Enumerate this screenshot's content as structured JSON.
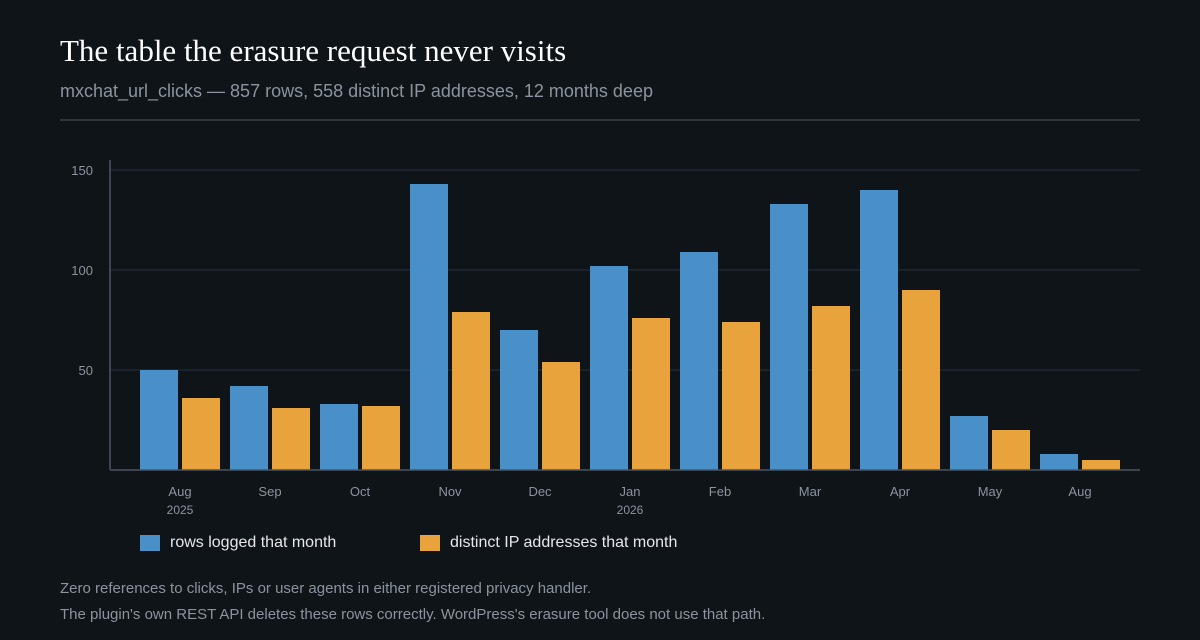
{
  "header": {
    "title": "The table the erasure request never visits",
    "subtitle": "mxchat_url_clicks — 857 rows, 558 distinct IP addresses, 12 months deep"
  },
  "colors": {
    "background": "#0f1419",
    "rows_series": "#4a90c8",
    "ips_series": "#e8a33d",
    "grid": "#1f2733",
    "axis": "#4a5462",
    "tick_text": "#8b949e"
  },
  "chart_data": {
    "type": "bar",
    "categories": [
      "Aug",
      "Sep",
      "Oct",
      "Nov",
      "Dec",
      "Jan",
      "Feb",
      "Mar",
      "Apr",
      "May",
      "Aug"
    ],
    "category_sublabels": [
      "2025",
      "",
      "",
      "",
      "",
      "2026",
      "",
      "",
      "",
      "",
      ""
    ],
    "series": [
      {
        "name": "rows logged that month",
        "color": "#4a90c8",
        "values": [
          50,
          42,
          33,
          143,
          70,
          102,
          109,
          133,
          140,
          27,
          8
        ]
      },
      {
        "name": "distinct IP addresses that month",
        "color": "#e8a33d",
        "values": [
          36,
          31,
          32,
          79,
          54,
          76,
          74,
          82,
          90,
          20,
          5
        ]
      }
    ],
    "ylim": [
      0,
      150
    ],
    "yticks": [
      50,
      100,
      150
    ],
    "grid": true,
    "legend": "bottom-left"
  },
  "legend": {
    "rows_label": "rows logged that month",
    "ips_label": "distinct IP addresses that month"
  },
  "notes": [
    "Zero references to clicks, IPs or user agents in either registered privacy handler.",
    "The plugin's own REST API deletes these rows correctly. WordPress's erasure tool does not use that path."
  ]
}
